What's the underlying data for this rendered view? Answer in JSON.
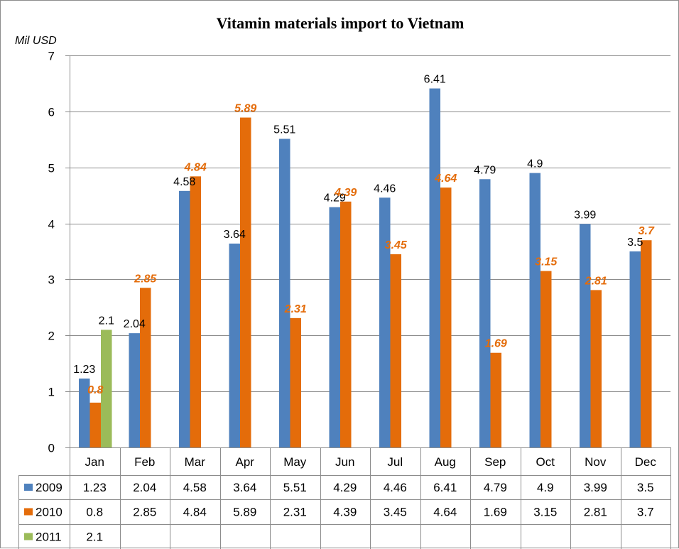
{
  "chart_data": {
    "type": "bar",
    "title": "Vitamin materials import to Vietnam",
    "ylabel": "Mil USD",
    "xlabel": "",
    "ylim": [
      0,
      7
    ],
    "yticks": [
      0,
      1,
      2,
      3,
      4,
      5,
      6,
      7
    ],
    "grid": true,
    "legend": "data-table-below",
    "categories": [
      "Jan",
      "Feb",
      "Mar",
      "Apr",
      "May",
      "Jun",
      "Jul",
      "Aug",
      "Sep",
      "Oct",
      "Nov",
      "Dec"
    ],
    "series": [
      {
        "name": "2009",
        "color": "#4f81bd",
        "values": [
          1.23,
          2.04,
          4.58,
          3.64,
          5.51,
          4.29,
          4.46,
          6.41,
          4.79,
          4.9,
          3.99,
          3.5
        ],
        "labels": [
          "1.23",
          "2.04",
          "4.58",
          "3.64",
          "5.51",
          "4.29",
          "4.46",
          "6.41",
          "4.79",
          "4.9",
          "3.99",
          "3.5"
        ]
      },
      {
        "name": "2010",
        "color": "#e46c0a",
        "values": [
          0.8,
          2.85,
          4.84,
          5.89,
          2.31,
          4.39,
          3.45,
          4.64,
          1.69,
          3.15,
          2.81,
          3.7
        ],
        "labels": [
          "0.8",
          "2.85",
          "4.84",
          "5.89",
          "2.31",
          "4.39",
          "3.45",
          "4.64",
          "1.69",
          "3.15",
          "2.81",
          "3.7"
        ]
      },
      {
        "name": "2011",
        "color": "#9bbb59",
        "values": [
          2.1,
          null,
          null,
          null,
          null,
          null,
          null,
          null,
          null,
          null,
          null,
          null
        ],
        "labels": [
          "2.1",
          "",
          "",
          "",
          "",
          "",
          "",
          "",
          "",
          "",
          "",
          ""
        ]
      }
    ]
  }
}
